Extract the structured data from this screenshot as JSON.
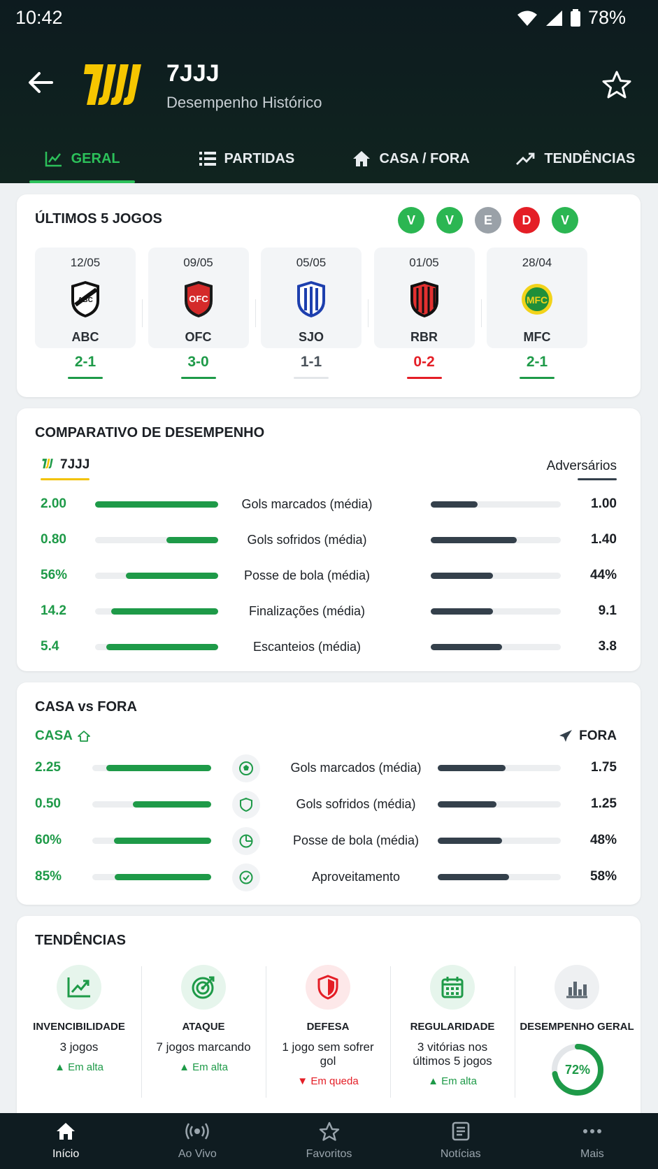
{
  "status": {
    "time": "10:42",
    "battery": "78%"
  },
  "header": {
    "team": "7JJJ",
    "subtitle": "Desempenho Histórico"
  },
  "tabs": [
    {
      "label": "GERAL",
      "icon": "chart-icon"
    },
    {
      "label": "PARTIDAS",
      "icon": "list-icon"
    },
    {
      "label": "CASA / FORA",
      "icon": "home-icon"
    },
    {
      "label": "TENDÊNCIAS",
      "icon": "trending-icon"
    }
  ],
  "last5": {
    "title": "ÚLTIMOS 5 JOGOS",
    "results": [
      "V",
      "V",
      "E",
      "D",
      "V"
    ],
    "games": [
      {
        "date": "12/05",
        "team": "ABC",
        "score": "2-1",
        "result": "V"
      },
      {
        "date": "09/05",
        "team": "OFC",
        "score": "3-0",
        "result": "V"
      },
      {
        "date": "05/05",
        "team": "SJO",
        "score": "1-1",
        "result": "E"
      },
      {
        "date": "01/05",
        "team": "RBR",
        "score": "0-2",
        "result": "D"
      },
      {
        "date": "28/04",
        "team": "MFC",
        "score": "2-1",
        "result": "V"
      }
    ]
  },
  "comparison": {
    "title": "COMPARATIVO DE DESEMPENHO",
    "team_label": "7JJJ",
    "opp_label": "Adversários",
    "rows": [
      {
        "label": "Gols marcados (média)",
        "left": "2.00",
        "right": "1.00",
        "left_pct": 1.0,
        "right_pct": 0.36
      },
      {
        "label": "Gols sofridos (média)",
        "left": "0.80",
        "right": "1.40",
        "left_pct": 0.42,
        "right_pct": 0.66
      },
      {
        "label": "Posse de bola (média)",
        "left": "56%",
        "right": "44%",
        "left_pct": 0.75,
        "right_pct": 0.48
      },
      {
        "label": "Finalizações (média)",
        "left": "14.2",
        "right": "9.1",
        "left_pct": 0.87,
        "right_pct": 0.48
      },
      {
        "label": "Escanteios (média)",
        "left": "5.4",
        "right": "3.8",
        "left_pct": 0.91,
        "right_pct": 0.55
      }
    ]
  },
  "home_away": {
    "title": "CASA vs FORA",
    "home_label": "CASA",
    "away_label": "FORA",
    "rows": [
      {
        "label": "Gols marcados (média)",
        "icon": "soccer-ball-icon",
        "left": "2.25",
        "right": "1.75",
        "left_pct": 0.88,
        "right_pct": 0.55
      },
      {
        "label": "Gols sofridos (média)",
        "icon": "shield-icon",
        "left": "0.50",
        "right": "1.25",
        "left_pct": 0.66,
        "right_pct": 0.48
      },
      {
        "label": "Posse de bola (média)",
        "icon": "pie-chart-icon",
        "left": "60%",
        "right": "48%",
        "left_pct": 0.82,
        "right_pct": 0.52
      },
      {
        "label": "Aproveitamento",
        "icon": "check-circle-icon",
        "left": "85%",
        "right": "58%",
        "left_pct": 0.81,
        "right_pct": 0.58
      }
    ]
  },
  "trends": {
    "title": "TENDÊNCIAS",
    "items": [
      {
        "title": "INVENCIBILIDADE",
        "desc": "3 jogos",
        "status": "Em alta",
        "up": true
      },
      {
        "title": "ATAQUE",
        "desc": "7 jogos marcando",
        "status": "Em alta",
        "up": true
      },
      {
        "title": "DEFESA",
        "desc": "1 jogo sem sofrer gol",
        "status": "Em queda",
        "up": false
      },
      {
        "title": "REGULARIDADE",
        "desc": "3 vitórias nos últimos 5 jogos",
        "status": "Em alta",
        "up": true
      },
      {
        "title": "DESEMPENHO GERAL",
        "value": "72%",
        "value_pct": 0.72
      }
    ]
  },
  "nav": [
    "Início",
    "Ao Vivo",
    "Favoritos",
    "Notícias",
    "Mais"
  ],
  "colors": {
    "green": "#1e9a48",
    "red": "#e41e26",
    "grey": "#9aa1a8",
    "dark": "#34404b"
  }
}
